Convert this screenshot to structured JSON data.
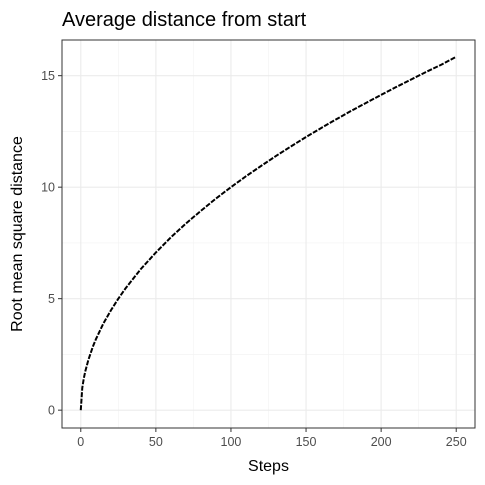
{
  "chart_data": {
    "type": "line",
    "title": "Average distance from start",
    "xlabel": "Steps",
    "ylabel": "Root mean square distance",
    "xlim": [
      -12.5,
      262.5
    ],
    "ylim": [
      -0.8,
      16.6
    ],
    "x_ticks": [
      0,
      50,
      100,
      150,
      200,
      250
    ],
    "y_ticks": [
      0,
      5,
      10,
      15
    ],
    "grid": true,
    "legend": "none",
    "series": [
      {
        "line_style": "dashed",
        "color": "#000000",
        "x": [
          0,
          1,
          2,
          3,
          5,
          8,
          10,
          15,
          20,
          25,
          30,
          40,
          50,
          60,
          70,
          80,
          90,
          100,
          110,
          120,
          130,
          140,
          150,
          160,
          170,
          180,
          190,
          200,
          210,
          220,
          230,
          240,
          250
        ],
        "y": [
          0,
          1.0,
          1.42,
          1.74,
          2.24,
          2.84,
          3.17,
          3.88,
          4.47,
          5.0,
          5.48,
          6.33,
          7.07,
          7.75,
          8.37,
          8.94,
          9.49,
          10.0,
          10.49,
          10.95,
          11.4,
          11.83,
          12.25,
          12.65,
          13.04,
          13.42,
          13.78,
          14.14,
          14.49,
          14.83,
          15.17,
          15.49,
          15.85
        ]
      }
    ]
  }
}
